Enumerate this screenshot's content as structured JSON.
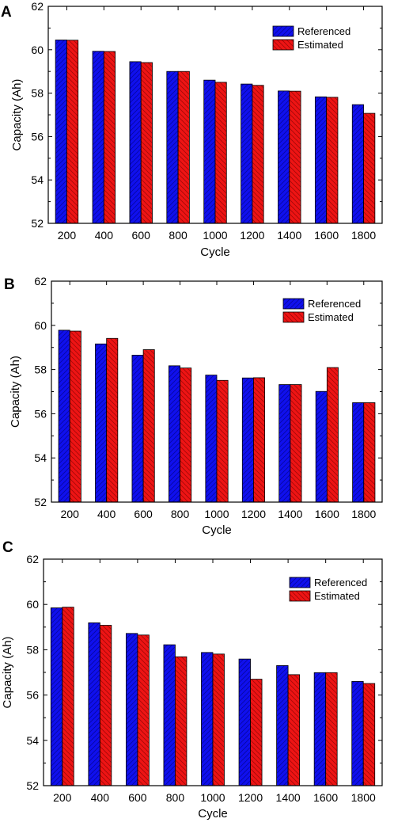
{
  "colors": {
    "referenced": "#1010ee",
    "estimated": "#ee1414",
    "axis": "#000000",
    "legend_border": "#000000"
  },
  "hatch": {
    "referenced": "diagonal-lines",
    "estimated": "diagonal-lines"
  },
  "chart_data": [
    {
      "panel_label": "A",
      "type": "bar",
      "categories": [
        "200",
        "400",
        "600",
        "800",
        "1000",
        "1200",
        "1400",
        "1600",
        "1800"
      ],
      "series": [
        {
          "name": "Referenced",
          "values": [
            60.45,
            59.93,
            59.45,
            59.0,
            58.6,
            58.42,
            58.1,
            57.83,
            57.47
          ]
        },
        {
          "name": "Estimated",
          "values": [
            60.44,
            59.92,
            59.41,
            59.0,
            58.5,
            58.36,
            58.09,
            57.81,
            57.07
          ]
        }
      ],
      "xlabel": "Cycle",
      "ylabel": "Capacity (Ah)",
      "ylim": [
        52,
        62
      ],
      "yticks": [
        "52",
        "54",
        "56",
        "58",
        "60",
        "62"
      ],
      "legend": "top-right",
      "grid": false
    },
    {
      "panel_label": "B",
      "type": "bar",
      "categories": [
        "200",
        "400",
        "600",
        "800",
        "1000",
        "1200",
        "1400",
        "1600",
        "1800"
      ],
      "series": [
        {
          "name": "Referenced",
          "values": [
            59.78,
            59.16,
            58.65,
            58.17,
            57.75,
            57.62,
            57.32,
            57.01,
            56.5
          ]
        },
        {
          "name": "Estimated",
          "values": [
            59.74,
            59.41,
            58.9,
            58.07,
            57.51,
            57.63,
            57.32,
            58.09,
            56.5
          ]
        }
      ],
      "xlabel": "Cycle",
      "ylabel": "Capacity (Ah)",
      "ylim": [
        52,
        62
      ],
      "yticks": [
        "52",
        "54",
        "56",
        "58",
        "60",
        "62"
      ],
      "legend": "top-right",
      "grid": false
    },
    {
      "panel_label": "C",
      "type": "bar",
      "categories": [
        "200",
        "400",
        "600",
        "800",
        "1000",
        "1200",
        "1400",
        "1600",
        "1800"
      ],
      "series": [
        {
          "name": "Referenced",
          "values": [
            59.85,
            59.19,
            58.72,
            58.22,
            57.88,
            57.59,
            57.3,
            56.99,
            56.6
          ]
        },
        {
          "name": "Estimated",
          "values": [
            59.88,
            59.08,
            58.65,
            57.69,
            57.81,
            56.7,
            56.9,
            56.99,
            56.51
          ]
        }
      ],
      "xlabel": "Cycle",
      "ylabel": "Capacity (Ah)",
      "ylim": [
        52,
        62
      ],
      "yticks": [
        "52",
        "54",
        "56",
        "58",
        "60",
        "62"
      ],
      "legend": "top-right",
      "grid": false
    }
  ]
}
